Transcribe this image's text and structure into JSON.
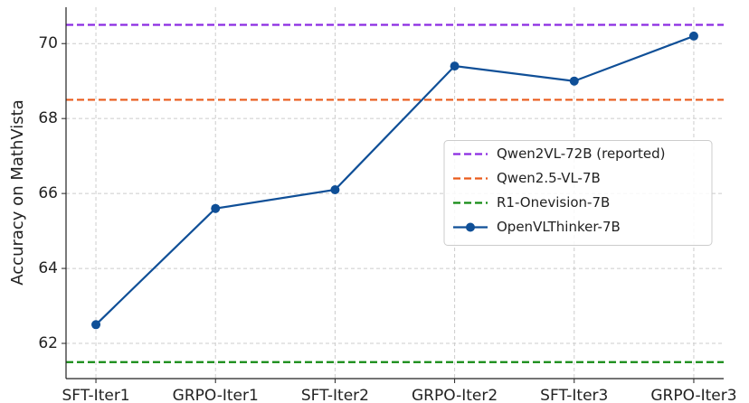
{
  "chart_data": {
    "type": "line",
    "categories": [
      "SFT-Iter1",
      "GRPO-Iter1",
      "SFT-Iter2",
      "GRPO-Iter2",
      "SFT-Iter3",
      "GRPO-Iter3"
    ],
    "ylabel": "Accuracy on MathVista",
    "ylim": [
      61.06,
      70.97
    ],
    "yticks": [
      62,
      64,
      66,
      68,
      70
    ],
    "grid": true,
    "legend": "center right",
    "reference_lines": [
      {
        "name": "Qwen2VL-72B (reported)",
        "color": "#8b2be2",
        "value": 70.5,
        "linestyle": "dashed"
      },
      {
        "name": "Qwen2.5-VL-7B",
        "color": "#e95b1b",
        "value": 68.5,
        "linestyle": "dashed"
      },
      {
        "name": "R1-Onevision-7B",
        "color": "#138a13",
        "value": 61.5,
        "linestyle": "dashed"
      }
    ],
    "series": [
      {
        "name": "OpenVLThinker-7B",
        "color": "#0f4f97",
        "values": [
          62.5,
          65.6,
          66.1,
          69.4,
          69.0,
          70.2
        ],
        "marker": "circle"
      }
    ]
  }
}
